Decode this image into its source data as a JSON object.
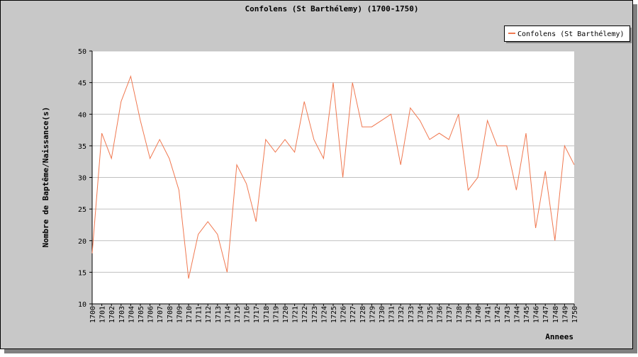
{
  "chart_data": {
    "type": "line",
    "title": "Confolens (St Barthélemy) (1700-1750)",
    "x_label": "Annees",
    "y_label": "Nombre de Baptême/Naissance(s)",
    "categories": [
      "1700",
      "1701",
      "1702",
      "1703",
      "1704",
      "1705",
      "1706",
      "1707",
      "1708",
      "1709",
      "1710",
      "1711",
      "1712",
      "1713",
      "1714",
      "1715",
      "1716",
      "1717",
      "1718",
      "1719",
      "1720",
      "1721",
      "1722",
      "1723",
      "1724",
      "1725",
      "1726",
      "1727",
      "1728",
      "1729",
      "1730",
      "1731",
      "1732",
      "1733",
      "1734",
      "1735",
      "1736",
      "1737",
      "1738",
      "1739",
      "1740",
      "1741",
      "1742",
      "1743",
      "1744",
      "1745",
      "1746",
      "1747",
      "1748",
      "1749",
      "1750"
    ],
    "series": [
      {
        "name": "Confolens (St Barthélemy)",
        "color": "#f07850",
        "values": [
          18,
          37,
          33,
          42,
          46,
          39,
          33,
          36,
          33,
          28,
          14,
          21,
          23,
          21,
          15,
          32,
          29,
          23,
          36,
          34,
          36,
          34,
          42,
          36,
          33,
          45,
          30,
          45,
          38,
          38,
          39,
          40,
          32,
          41,
          39,
          36,
          37,
          36,
          40,
          28,
          30,
          39,
          35,
          35,
          28,
          37,
          22,
          31,
          20,
          35,
          32
        ]
      }
    ],
    "ylim": [
      10,
      50
    ],
    "yticks": [
      10,
      15,
      20,
      25,
      30,
      35,
      40,
      45,
      50
    ],
    "grid": true,
    "legend": "top-right"
  }
}
